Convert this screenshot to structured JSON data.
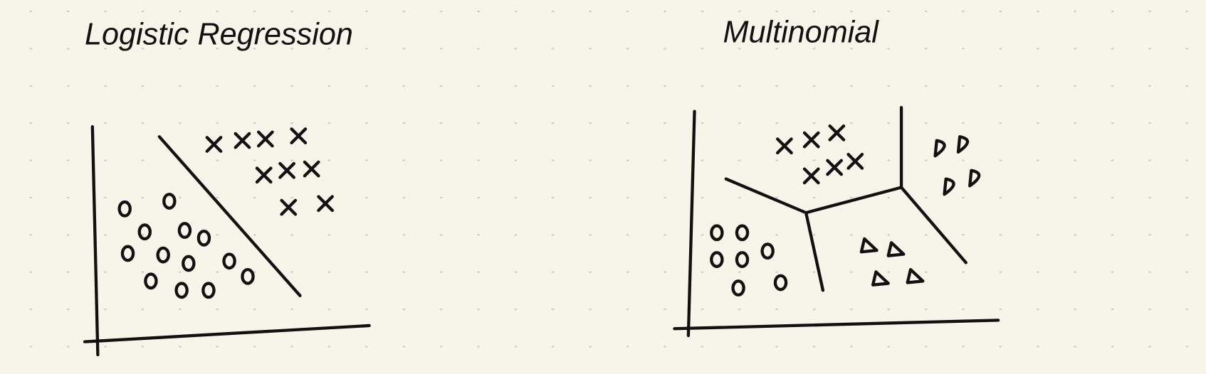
{
  "panels": [
    {
      "title": "Logistic Regression"
    },
    {
      "title": "Multinomial"
    }
  ]
}
